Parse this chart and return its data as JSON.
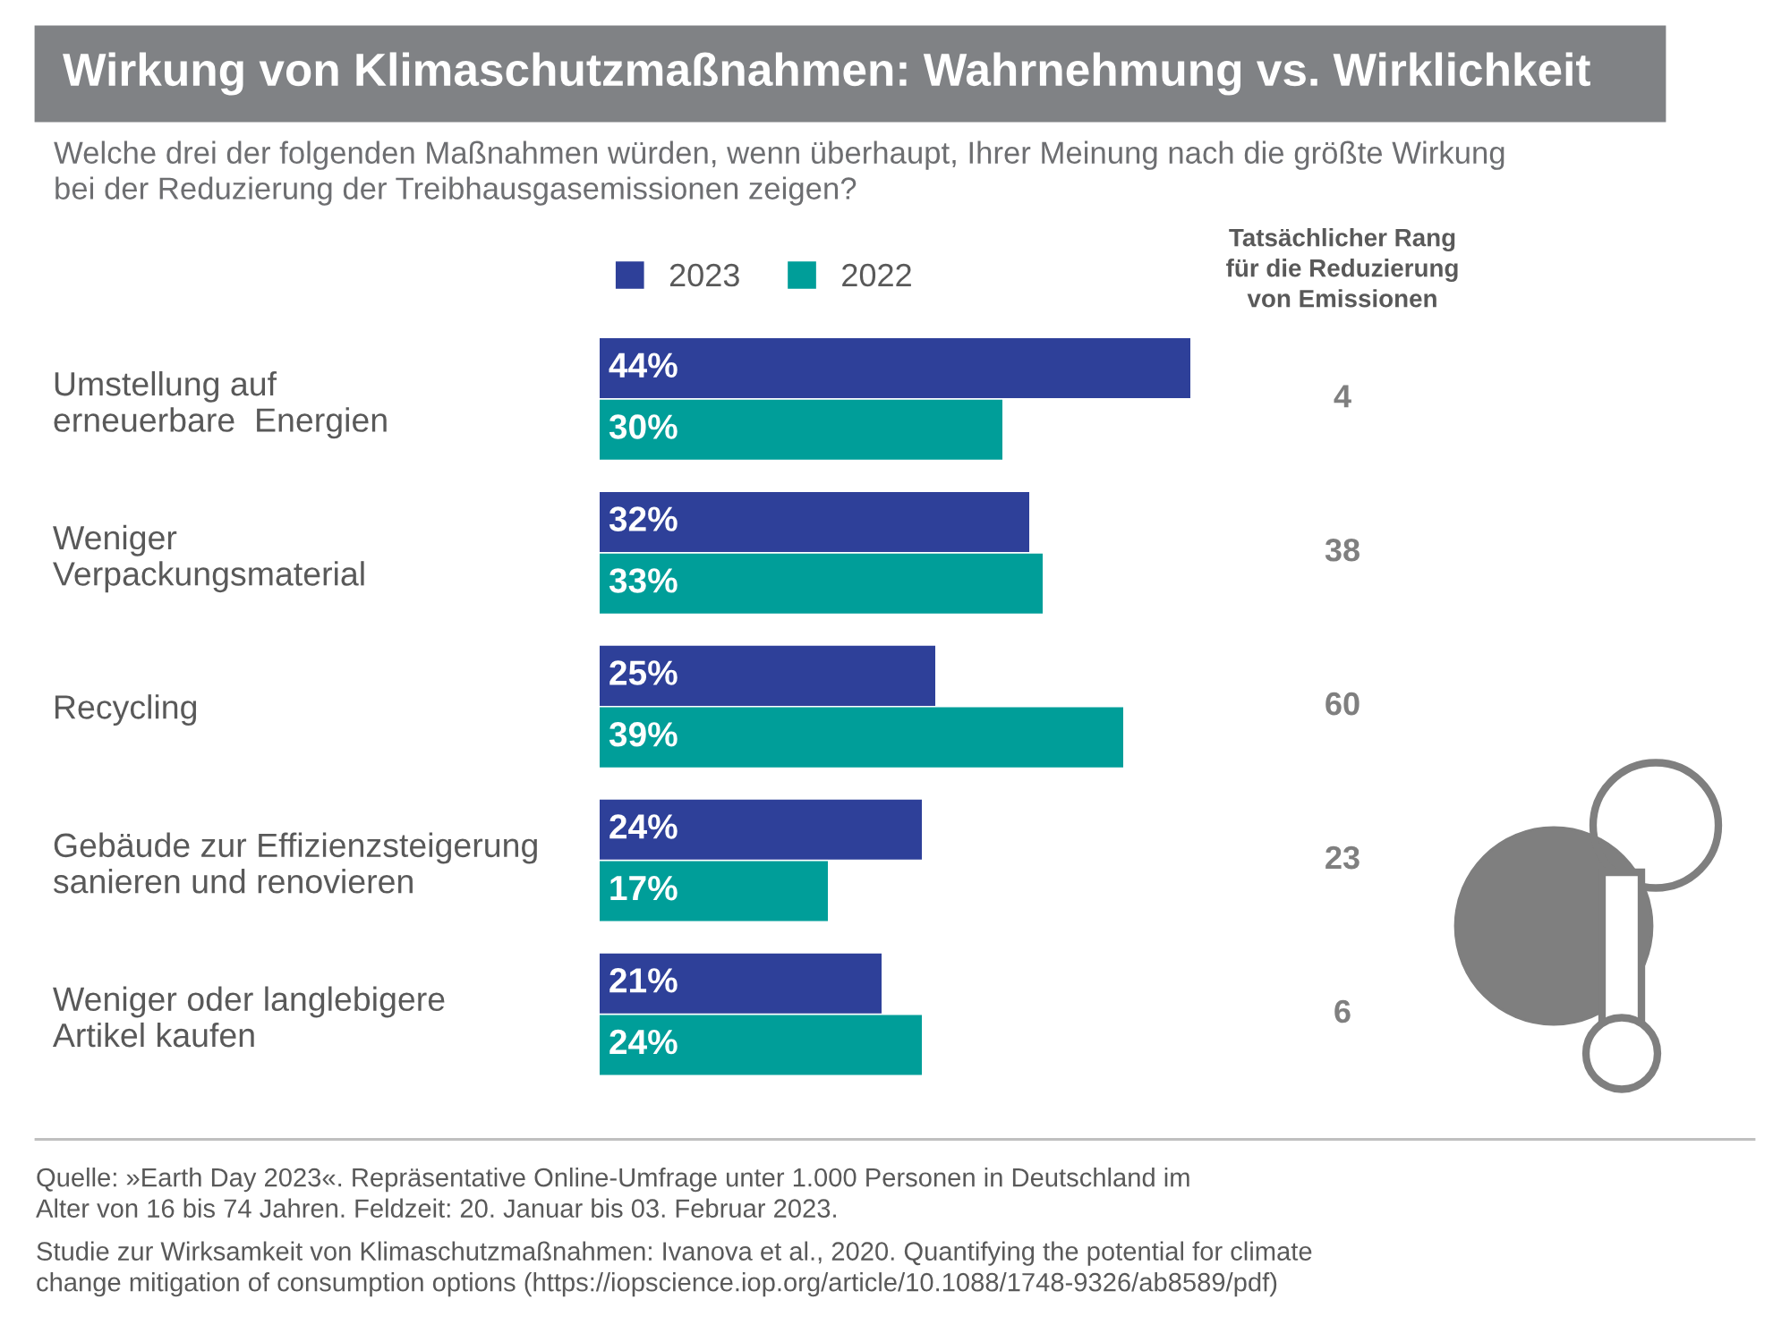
{
  "chart_data": {
    "type": "bar",
    "orientation": "horizontal",
    "title": "Wirkung von Klimaschutzmaßnahmen: Wahrnehmung vs. Wirklichkeit",
    "subtitle": "Welche drei der folgenden Maßnahmen würden, wenn überhaupt, Ihrer Meinung nach die größte Wirkung\nbei der Reduzierung der Treibhausgasemissionen zeigen?",
    "categories": [
      "Umstellung auf\nerneuerbare  Energien",
      "Weniger\nVerpackungsmaterial",
      "Recycling",
      "Gebäude zur Effizienzsteigerung\nsanieren und renovieren",
      "Weniger oder langlebigere\nArtikel kaufen"
    ],
    "series": [
      {
        "name": "2023",
        "color": "#2e4099",
        "values": [
          44,
          32,
          25,
          24,
          21
        ],
        "value_labels": [
          "44%",
          "32%",
          "25%",
          "24%",
          "21%"
        ]
      },
      {
        "name": "2022",
        "color": "#009e99",
        "values": [
          30,
          33,
          39,
          17,
          24
        ],
        "value_labels": [
          "30%",
          "33%",
          "39%",
          "17%",
          "24%"
        ]
      }
    ],
    "legend": "top left",
    "annotations": [
      "Tatsächlicher Rang\nfür die Reduzierung\nvon Emissionen",
      "4",
      "38",
      "60",
      "23",
      "6",
      "Quelle: »Earth Day 2023«. Repräsentative Online-Umfrage unter 1.000 Personen in Deutschland im\nAlter von 16 bis 74 Jahren. Feldzeit: 20. Januar bis 03. Februar 2023.",
      "Studie zur Wirksamkeit von Klimaschutzmaßnahmen: Ivanova et al., 2020. Quantifying the potential for climate\nchange mitigation of consumption options (https://iopscience.iop.org/article/10.1088/1748-9326/ab8589/pdf)"
    ]
  }
}
